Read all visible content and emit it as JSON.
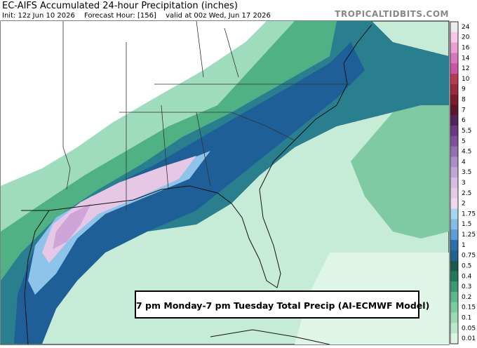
{
  "header": {
    "title": "EC-AIFS Accumulated 24-hour Precipitation (inches)",
    "init": "Init: 12z Jun 10 2026",
    "forecast_hour": "Forecast Hour: [156]",
    "valid": "valid at 00z Wed, Jun 17 2026",
    "watermark": "TROPICALTIDBITS.COM"
  },
  "annotation": "7 pm Monday-7 pm Tuesday Total Precip (AI-ECMWF Model)",
  "colorbar": {
    "levels": [
      {
        "label": "24",
        "color": "#ededf0"
      },
      {
        "label": "20",
        "color": "#f5c8e6"
      },
      {
        "label": "16",
        "color": "#e8a0d2"
      },
      {
        "label": "14",
        "color": "#d778bc"
      },
      {
        "label": "12",
        "color": "#c856a4"
      },
      {
        "label": "10",
        "color": "#b43c50"
      },
      {
        "label": "9",
        "color": "#9a2a3c"
      },
      {
        "label": "8",
        "color": "#7c1c2c"
      },
      {
        "label": "7",
        "color": "#60142a"
      },
      {
        "label": "6",
        "color": "#52245e"
      },
      {
        "label": "5.5",
        "color": "#6a3a80"
      },
      {
        "label": "5",
        "color": "#7e529a"
      },
      {
        "label": "4.5",
        "color": "#9470b2"
      },
      {
        "label": "4",
        "color": "#ab8ec6"
      },
      {
        "label": "3.5",
        "color": "#c0a8d6"
      },
      {
        "label": "3",
        "color": "#d6bde2"
      },
      {
        "label": "2.5",
        "color": "#e4cce8"
      },
      {
        "label": "2",
        "color": "#f0d8ee"
      },
      {
        "label": "1.75",
        "color": "#a8d4f0"
      },
      {
        "label": "1.5",
        "color": "#84bce6"
      },
      {
        "label": "1.25",
        "color": "#5c9ed6"
      },
      {
        "label": "1",
        "color": "#2e6eaa"
      },
      {
        "label": "0.75",
        "color": "#1e6490"
      },
      {
        "label": "0.5",
        "color": "#1a5a4e"
      },
      {
        "label": "0.4",
        "color": "#207a5a"
      },
      {
        "label": "0.3",
        "color": "#3a9a72"
      },
      {
        "label": "0.2",
        "color": "#5cb88a"
      },
      {
        "label": "0.15",
        "color": "#7ccaa0"
      },
      {
        "label": "0.1",
        "color": "#9cdab6"
      },
      {
        "label": "0.05",
        "color": "#bce8cc"
      },
      {
        "label": "0.01",
        "color": "#dcf4e4"
      }
    ]
  }
}
